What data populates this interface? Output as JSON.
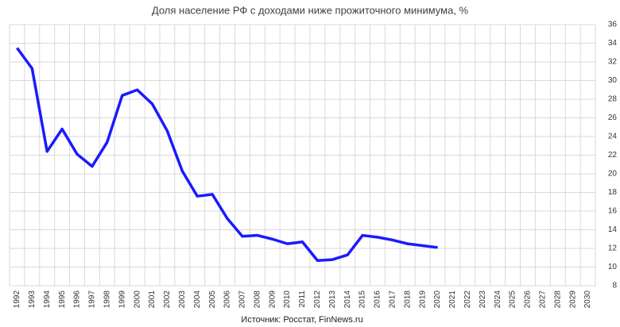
{
  "chart_data": {
    "type": "line",
    "title": "Доля население РФ с доходами ниже прожиточного минимума, %",
    "source": "Источник: Росстат, FinNews.ru",
    "categories": [
      "1992",
      "1993",
      "1994",
      "1995",
      "1996",
      "1997",
      "1998",
      "1999",
      "2000",
      "2001",
      "2002",
      "2003",
      "2004",
      "2005",
      "2006",
      "2007",
      "2008",
      "2009",
      "2010",
      "2011",
      "2012",
      "2013",
      "2014",
      "2015",
      "2016",
      "2017",
      "2018",
      "2019",
      "2020",
      "2021",
      "2022",
      "2023",
      "2024",
      "2025",
      "2026",
      "2027",
      "2028",
      "2029",
      "2030"
    ],
    "series": [
      {
        "name": "Доля населения",
        "color": "#1a1aff",
        "values": [
          33.5,
          31.3,
          22.4,
          24.8,
          22.1,
          20.8,
          23.4,
          28.4,
          29.0,
          27.5,
          24.6,
          20.3,
          17.6,
          17.8,
          15.2,
          13.3,
          13.4,
          13.0,
          12.5,
          12.7,
          10.7,
          10.8,
          11.3,
          13.4,
          13.2,
          12.9,
          12.5,
          12.3,
          12.1,
          null,
          null,
          null,
          null,
          null,
          null,
          null,
          null,
          null,
          null
        ]
      }
    ],
    "ylim": [
      8,
      36
    ],
    "yticks": [
      8,
      10,
      12,
      14,
      16,
      18,
      20,
      22,
      24,
      26,
      28,
      30,
      32,
      34,
      36
    ],
    "grid": true
  }
}
